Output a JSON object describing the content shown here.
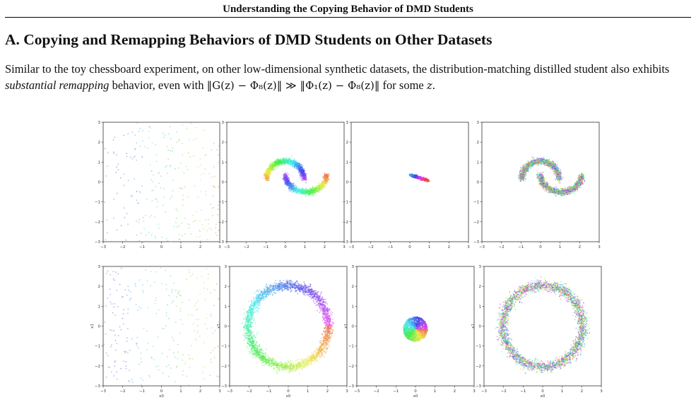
{
  "header": {
    "running_title": "Understanding the Copying Behavior of DMD Students"
  },
  "section": {
    "title": "A. Copying and Remapping Behaviors of DMD Students on Other Datasets"
  },
  "paragraph": {
    "part1": "Similar to the toy chessboard experiment, on other low-dimensional synthetic datasets, the distribution-matching distilled student also exhibits ",
    "emph": "substantial remapping",
    "part2": " behavior, even with ",
    "math1": "‖G(z) − Φ₈(z)‖ ≫ ‖Φ₁(z) − Φ₈(z)‖",
    "part3": " for some ",
    "math2": "z",
    "part4": "."
  },
  "chart_data": [
    {
      "type": "scatter",
      "panel": "row1-col1",
      "pattern": "uniform-noise",
      "xlim": [
        -3,
        3
      ],
      "ylim": [
        -3,
        3
      ],
      "xticks": [
        "−3",
        "−2",
        "−1",
        "0",
        "1",
        "2",
        "3"
      ],
      "yticks": [
        "−3",
        "−2",
        "−1",
        "0",
        "1",
        "2",
        "3"
      ],
      "xlabel": "",
      "ylabel": ""
    },
    {
      "type": "scatter",
      "panel": "row1-col2",
      "pattern": "two-moons",
      "xlim": [
        -3,
        3
      ],
      "ylim": [
        -3,
        3
      ],
      "xticks": [
        "−3",
        "−2",
        "−1",
        "0",
        "1",
        "2",
        "3"
      ],
      "yticks": [
        "−3",
        "−2",
        "−1",
        "0",
        "1",
        "2",
        "3"
      ],
      "xlabel": "",
      "ylabel": ""
    },
    {
      "type": "scatter",
      "panel": "row1-col3",
      "pattern": "collapsed-streak",
      "xlim": [
        -3,
        3
      ],
      "ylim": [
        -3,
        3
      ],
      "xticks": [
        "−3",
        "−2",
        "−1",
        "0",
        "1",
        "2",
        "3"
      ],
      "yticks": [
        "−3",
        "−2",
        "−1",
        "0",
        "1",
        "2",
        "3"
      ],
      "xlabel": "",
      "ylabel": ""
    },
    {
      "type": "scatter",
      "panel": "row1-col4",
      "pattern": "two-moons-remapped",
      "xlim": [
        -3,
        3
      ],
      "ylim": [
        -3,
        3
      ],
      "xticks": [
        "−3",
        "−2",
        "−1",
        "0",
        "1",
        "2",
        "3"
      ],
      "yticks": [
        "−3",
        "−2",
        "−1",
        "0",
        "1",
        "2",
        "3"
      ],
      "xlabel": "",
      "ylabel": ""
    },
    {
      "type": "scatter",
      "panel": "row2-col1",
      "pattern": "uniform-noise",
      "xlim": [
        -3,
        3
      ],
      "ylim": [
        -3,
        3
      ],
      "xticks": [
        "−3",
        "−2",
        "−1",
        "0",
        "1",
        "2",
        "3"
      ],
      "yticks": [
        "−3",
        "−2",
        "−1",
        "0",
        "1",
        "2",
        "3"
      ],
      "xlabel": "x0",
      "ylabel": "x1"
    },
    {
      "type": "scatter",
      "panel": "row2-col2",
      "pattern": "ring",
      "xlim": [
        -3,
        3
      ],
      "ylim": [
        -3,
        3
      ],
      "xticks": [
        "−3",
        "−2",
        "−1",
        "0",
        "1",
        "2",
        "3"
      ],
      "yticks": [
        "−3",
        "−2",
        "−1",
        "0",
        "1",
        "2",
        "3"
      ],
      "xlabel": "x0",
      "ylabel": "x1"
    },
    {
      "type": "scatter",
      "panel": "row2-col3",
      "pattern": "collapsed-disk",
      "xlim": [
        -3,
        3
      ],
      "ylim": [
        -3,
        3
      ],
      "xticks": [
        "−3",
        "−2",
        "−1",
        "0",
        "1",
        "2",
        "3"
      ],
      "yticks": [
        "−3",
        "−2",
        "−1",
        "0",
        "1",
        "2",
        "3"
      ],
      "xlabel": "x0",
      "ylabel": "x1"
    },
    {
      "type": "scatter",
      "panel": "row2-col4",
      "pattern": "ring-remapped",
      "xlim": [
        -3,
        3
      ],
      "ylim": [
        -3,
        3
      ],
      "xticks": [
        "−3",
        "−2",
        "−1",
        "0",
        "1",
        "2",
        "3"
      ],
      "yticks": [
        "−3",
        "−2",
        "−1",
        "0",
        "1",
        "2",
        "3"
      ],
      "xlabel": "x0",
      "ylabel": "x1"
    }
  ]
}
